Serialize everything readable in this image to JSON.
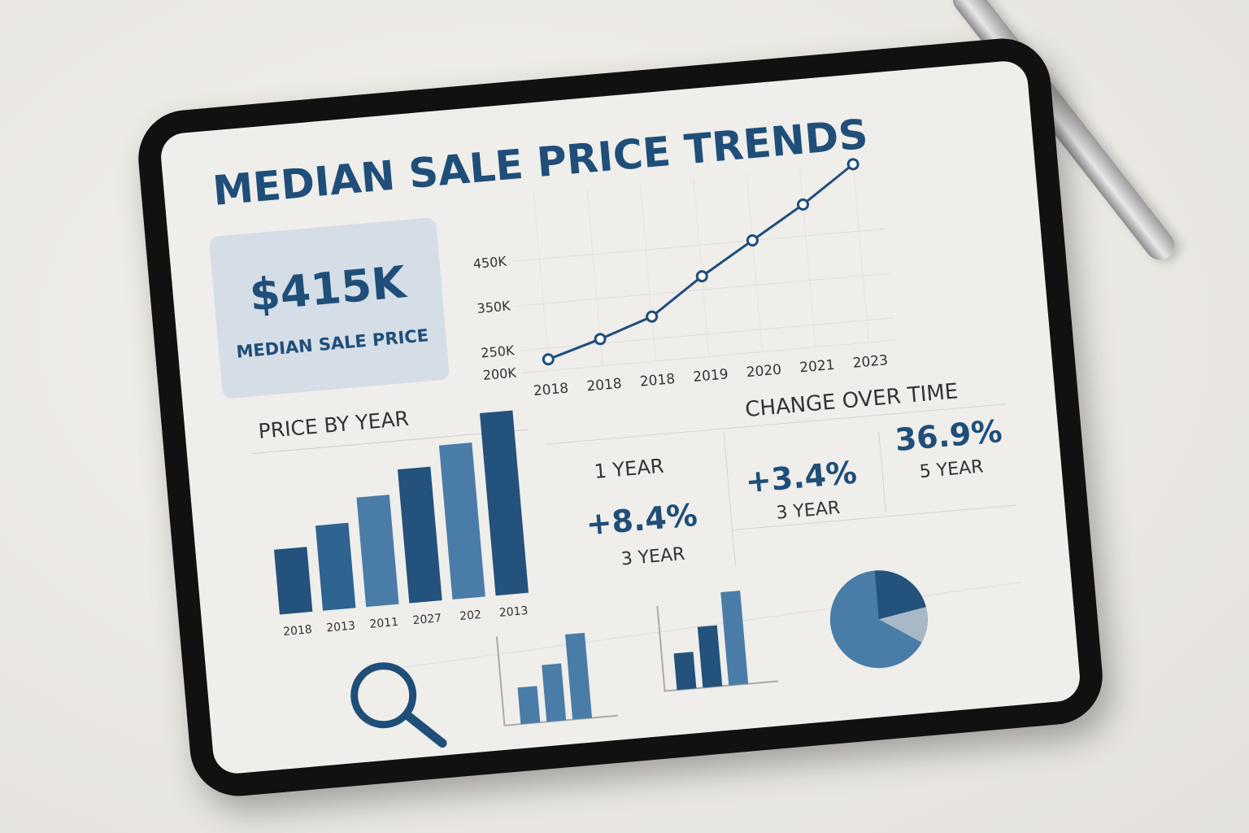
{
  "header": {
    "title": "MEDIAN SALE PRICE TRENDS"
  },
  "kpi": {
    "value": "$415K",
    "label": "MEDIAN SALE PRICE"
  },
  "line_chart": {
    "type": "line",
    "categories": [
      "2018",
      "2018",
      "2018",
      "2019",
      "2020",
      "2021",
      "2023"
    ],
    "values": [
      225000,
      260000,
      300000,
      380000,
      450000,
      520000,
      600000
    ],
    "color": "#1f4e79",
    "ylim": [
      200000,
      600000
    ],
    "yticks": [
      {
        "value": 200000,
        "label": "200K"
      },
      {
        "value": 250000,
        "label": "250K"
      },
      {
        "value": 350000,
        "label": "350K"
      },
      {
        "value": 450000,
        "label": "450K"
      }
    ],
    "grid": true
  },
  "bar_chart": {
    "type": "bar",
    "title": "PRICE BY YEAR",
    "categories": [
      "2018",
      "2013",
      "2011",
      "2027",
      "202",
      "2013"
    ],
    "values": [
      80,
      105,
      135,
      165,
      190,
      225
    ],
    "colors": [
      "#23527c",
      "#2f6390",
      "#4a7ca8",
      "#23527c",
      "#4a7ca8",
      "#23527c"
    ]
  },
  "change": {
    "title": "CHANGE OVER TIME",
    "items": [
      {
        "period": "1 YEAR"
      },
      {
        "value": "+8.4%",
        "period": "3 YEAR"
      },
      {
        "value": "+3.4%",
        "period": "3 YEAR"
      },
      {
        "value": "36.9%",
        "period": "5 YEAR"
      }
    ]
  }
}
